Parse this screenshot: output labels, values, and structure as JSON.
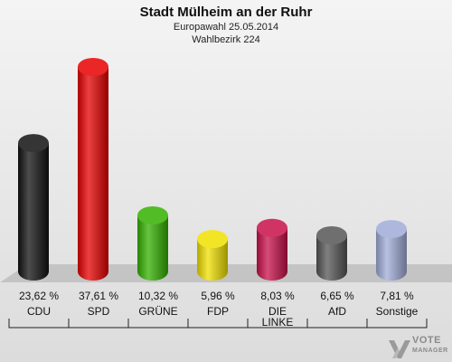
{
  "header": {
    "title": "Stadt Mülheim an der Ruhr",
    "subtitle": "Europawahl 25.05.2014",
    "subtitle2": "Wahlbezirk 224"
  },
  "chart_data": {
    "type": "bar",
    "categories": [
      "CDU",
      "SPD",
      "GRÜNE",
      "FDP",
      "DIE LINKE",
      "AfD",
      "Sonstige"
    ],
    "category_lines": [
      [
        "CDU"
      ],
      [
        "SPD"
      ],
      [
        "GRÜNE"
      ],
      [
        "FDP"
      ],
      [
        "DIE",
        "LINKE"
      ],
      [
        "AfD"
      ],
      [
        "Sonstige"
      ]
    ],
    "values": [
      23.62,
      37.61,
      10.32,
      5.96,
      8.03,
      6.65,
      7.81
    ],
    "value_labels": [
      "23,62 %",
      "37,61 %",
      "10,32 %",
      "5,96 %",
      "8,03 %",
      "6,65 %",
      "7,81 %"
    ],
    "colors": [
      "#111111",
      "#e60000",
      "#33b000",
      "#f0e000",
      "#c8104a",
      "#555555",
      "#a0acd8"
    ],
    "ylim": [
      0,
      40
    ],
    "grid": false,
    "legend": "none"
  },
  "logo": {
    "line1": "VOTE",
    "line2": "MANAGER"
  }
}
